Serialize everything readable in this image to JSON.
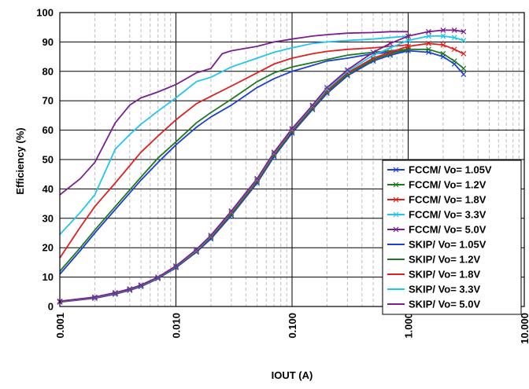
{
  "chart_data": {
    "type": "line",
    "xlabel": "IOUT (A)",
    "ylabel": "Efficiency (%)",
    "x_scale": "log",
    "xlim": [
      0.001,
      10
    ],
    "ylim": [
      0,
      100
    ],
    "x_ticks": [
      "0.001",
      "0.010",
      "0.100",
      "1.000",
      "10.000"
    ],
    "y_ticks": [
      "0",
      "10",
      "20",
      "30",
      "40",
      "50",
      "60",
      "70",
      "80",
      "90",
      "100"
    ],
    "grid": "major solid, minor dashed on x",
    "legend_position": "right, inside plot",
    "series": [
      {
        "name": "FCCM/ Vo= 1.05V",
        "color": "#1f3fd0",
        "marker": "x",
        "x": [
          0.001,
          0.002,
          0.003,
          0.004,
          0.005,
          0.007,
          0.01,
          0.015,
          0.02,
          0.03,
          0.05,
          0.07,
          0.1,
          0.15,
          0.2,
          0.3,
          0.5,
          0.7,
          1.0,
          1.5,
          2.0,
          2.5,
          3.0
        ],
        "y": [
          1.5,
          2.8,
          4.2,
          5.5,
          6.8,
          9.5,
          13.2,
          18.5,
          23,
          31,
          42,
          51,
          59,
          67,
          72.5,
          78.5,
          83.5,
          85.5,
          87,
          86.5,
          85,
          82.5,
          79
        ]
      },
      {
        "name": "FCCM/ Vo= 1.2V",
        "color": "#1f7a1f",
        "marker": "x",
        "x": [
          0.001,
          0.002,
          0.003,
          0.004,
          0.005,
          0.007,
          0.01,
          0.015,
          0.02,
          0.03,
          0.05,
          0.07,
          0.1,
          0.15,
          0.2,
          0.3,
          0.5,
          0.7,
          1.0,
          1.5,
          2.0,
          2.5,
          3.0
        ],
        "y": [
          1.6,
          3.0,
          4.4,
          5.7,
          7.0,
          9.7,
          13.5,
          18.8,
          23.5,
          31.5,
          42.5,
          51.5,
          59.5,
          67.5,
          73,
          79,
          84,
          86,
          87.5,
          87.5,
          86,
          83.5,
          81
        ]
      },
      {
        "name": "FCCM/ Vo= 1.8V",
        "color": "#e02020",
        "marker": "x",
        "x": [
          0.001,
          0.002,
          0.003,
          0.004,
          0.005,
          0.007,
          0.01,
          0.015,
          0.02,
          0.03,
          0.05,
          0.07,
          0.1,
          0.15,
          0.2,
          0.3,
          0.5,
          0.7,
          1.0,
          1.5,
          2.0,
          2.5,
          3.0
        ],
        "y": [
          1.6,
          3.0,
          4.5,
          5.8,
          7.1,
          9.8,
          13.6,
          19,
          23.8,
          32,
          43,
          52,
          60,
          68,
          73.5,
          79.5,
          84.5,
          86.5,
          88.5,
          89.5,
          89,
          87.5,
          86
        ]
      },
      {
        "name": "FCCM/ Vo= 3.3V",
        "color": "#22c5ee",
        "marker": "x",
        "x": [
          0.001,
          0.002,
          0.003,
          0.004,
          0.005,
          0.007,
          0.01,
          0.015,
          0.02,
          0.03,
          0.05,
          0.07,
          0.1,
          0.15,
          0.2,
          0.3,
          0.5,
          0.7,
          1.0,
          1.5,
          2.0,
          2.5,
          3.0
        ],
        "y": [
          1.7,
          3.1,
          4.6,
          5.9,
          7.2,
          9.9,
          13.7,
          19.2,
          24,
          32.3,
          43.3,
          52.3,
          60.3,
          68.3,
          74,
          80,
          85.5,
          88,
          90.5,
          92,
          92,
          91.5,
          90.5
        ]
      },
      {
        "name": "FCCM/ Vo= 5.0V",
        "color": "#7a1f8f",
        "marker": "x",
        "x": [
          0.001,
          0.002,
          0.003,
          0.004,
          0.005,
          0.007,
          0.01,
          0.015,
          0.02,
          0.03,
          0.05,
          0.07,
          0.1,
          0.15,
          0.2,
          0.3,
          0.5,
          0.7,
          1.0,
          1.5,
          2.0,
          2.5,
          3.0
        ],
        "y": [
          1.8,
          3.2,
          4.7,
          6.0,
          7.3,
          10,
          13.8,
          19.4,
          24.2,
          32.5,
          43.5,
          52.5,
          60.5,
          68.5,
          74.5,
          80.5,
          86.5,
          89.5,
          92,
          93.5,
          94,
          94,
          93.5
        ]
      },
      {
        "name": "SKIP/ Vo= 1.05V",
        "color": "#1f3fd0",
        "marker": "none",
        "x": [
          0.001,
          0.0015,
          0.002,
          0.003,
          0.005,
          0.007,
          0.01,
          0.015,
          0.02,
          0.03,
          0.05,
          0.07,
          0.1,
          0.15,
          0.2,
          0.3,
          0.5,
          0.7,
          1.0
        ],
        "y": [
          11,
          19,
          25,
          33,
          43,
          49,
          55,
          61,
          64.5,
          68.5,
          74.5,
          77.5,
          80,
          82,
          83.5,
          84.5,
          86,
          86.5,
          87
        ]
      },
      {
        "name": "SKIP/ Vo= 1.2V",
        "color": "#1f7a1f",
        "marker": "none",
        "x": [
          0.001,
          0.0015,
          0.002,
          0.003,
          0.005,
          0.007,
          0.01,
          0.015,
          0.02,
          0.03,
          0.05,
          0.07,
          0.1,
          0.15,
          0.2,
          0.3,
          0.5,
          0.7,
          1.0
        ],
        "y": [
          12,
          20,
          26,
          34,
          44,
          50.5,
          56,
          62.5,
          66,
          70.5,
          76.5,
          79.5,
          81.5,
          83,
          84,
          85.5,
          86.5,
          87,
          87.5
        ]
      },
      {
        "name": "SKIP/ Vo= 1.8V",
        "color": "#e02020",
        "marker": "none",
        "x": [
          0.001,
          0.0015,
          0.002,
          0.003,
          0.005,
          0.007,
          0.01,
          0.015,
          0.02,
          0.03,
          0.05,
          0.07,
          0.1,
          0.15,
          0.2,
          0.3,
          0.5,
          0.7,
          1.0
        ],
        "y": [
          16.5,
          27,
          34,
          42,
          52.5,
          58,
          63.5,
          69,
          71.5,
          75,
          79.5,
          82.5,
          84.5,
          86,
          86.8,
          87.5,
          88,
          88.5,
          89
        ]
      },
      {
        "name": "SKIP/ Vo= 3.3V",
        "color": "#22c5ee",
        "marker": "none",
        "x": [
          0.001,
          0.0015,
          0.002,
          0.003,
          0.004,
          0.005,
          0.007,
          0.01,
          0.015,
          0.02,
          0.03,
          0.05,
          0.07,
          0.1,
          0.15,
          0.2,
          0.3,
          0.5,
          0.7,
          1.0
        ],
        "y": [
          24.5,
          32,
          38,
          53.5,
          58.5,
          62,
          66.5,
          71,
          76.5,
          78,
          81.5,
          84.5,
          86.5,
          88,
          89.5,
          90,
          90.5,
          91,
          91.5,
          92
        ]
      },
      {
        "name": "SKIP/ Vo= 5.0V",
        "color": "#7a1f8f",
        "marker": "none",
        "x": [
          0.001,
          0.0015,
          0.002,
          0.003,
          0.004,
          0.005,
          0.007,
          0.01,
          0.015,
          0.02,
          0.025,
          0.03,
          0.05,
          0.07,
          0.1,
          0.15,
          0.2,
          0.3,
          0.5,
          0.7,
          1.0
        ],
        "y": [
          38,
          43.5,
          49,
          62.5,
          68.5,
          71,
          73,
          75.5,
          79.5,
          81,
          86,
          87,
          88.5,
          90,
          91,
          92,
          92.5,
          93,
          93.2,
          93.5,
          93.5
        ]
      }
    ]
  }
}
